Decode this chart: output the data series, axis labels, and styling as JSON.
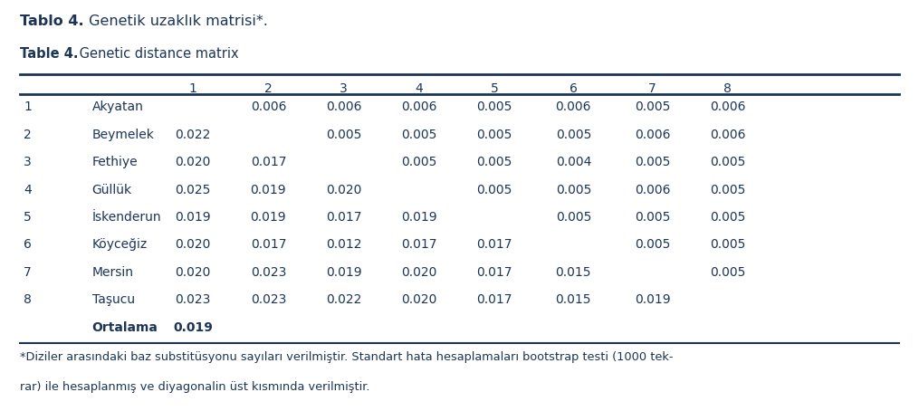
{
  "title_bold": "Tablo 4.",
  "title_rest": " Genetik uzaklık matrisi*.",
  "subtitle_bold": "Table 4.",
  "subtitle_rest": " Genetic distance matrix",
  "col_headers": [
    "",
    "1",
    "2",
    "3",
    "4",
    "5",
    "6",
    "7",
    "8"
  ],
  "rows": [
    [
      "1",
      "Akyatan",
      "",
      "0.006",
      "0.006",
      "0.006",
      "0.005",
      "0.006",
      "0.005",
      "0.006"
    ],
    [
      "2",
      "Beymelek",
      "0.022",
      "",
      "0.005",
      "0.005",
      "0.005",
      "0.005",
      "0.006",
      "0.006"
    ],
    [
      "3",
      "Fethiye",
      "0.020",
      "0.017",
      "",
      "0.005",
      "0.005",
      "0.004",
      "0.005",
      "0.005"
    ],
    [
      "4",
      "Güllük",
      "0.025",
      "0.019",
      "0.020",
      "",
      "0.005",
      "0.005",
      "0.006",
      "0.005"
    ],
    [
      "5",
      "İskenderun",
      "0.019",
      "0.019",
      "0.017",
      "0.019",
      "",
      "0.005",
      "0.005",
      "0.005"
    ],
    [
      "6",
      "Köyceğiz",
      "0.020",
      "0.017",
      "0.012",
      "0.017",
      "0.017",
      "",
      "0.005",
      "0.005"
    ],
    [
      "7",
      "Mersin",
      "0.020",
      "0.023",
      "0.019",
      "0.020",
      "0.017",
      "0.015",
      "",
      "0.005"
    ],
    [
      "8",
      "Taşucu",
      "0.023",
      "0.023",
      "0.022",
      "0.020",
      "0.017",
      "0.015",
      "0.019",
      ""
    ],
    [
      "",
      "Ortalama",
      "0.019",
      "",
      "",
      "",
      "",
      "",
      "",
      ""
    ]
  ],
  "footnote_line1": "*Diziler arasındaki baz substitüsyonu sayıları verilmiştir. Standart hata hesaplamaları bootstrap testi (1000 tek-",
  "footnote_line2": "rar) ile hesaplanmış ve diyagonalin üst kısmında verilmiştir.",
  "bg_color": "#ffffff",
  "text_color": "#1c3557",
  "font_size": 10.0,
  "title_font_size": 11.5,
  "subtitle_font_size": 10.5
}
